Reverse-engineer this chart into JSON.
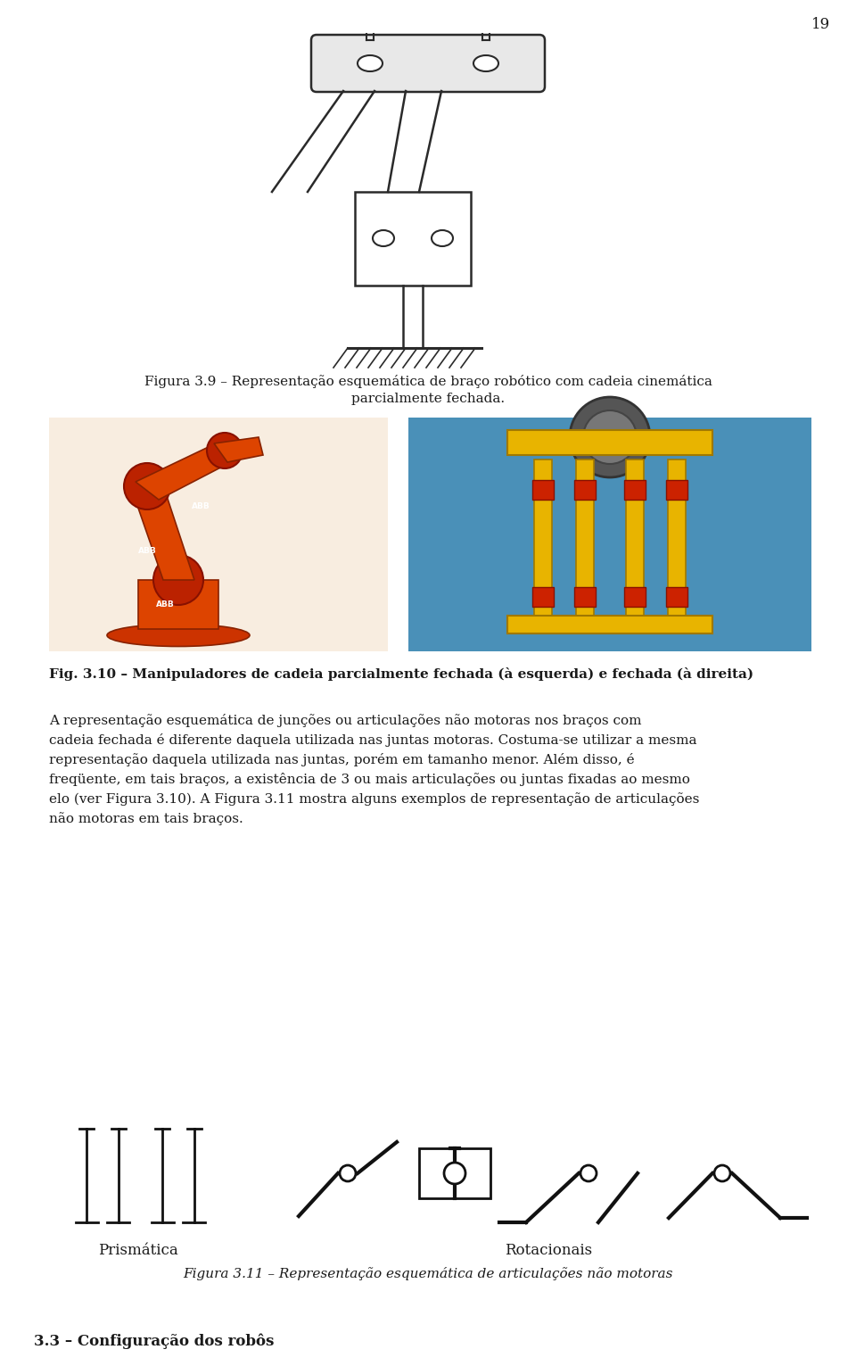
{
  "page_number": "19",
  "background_color": "#ffffff",
  "text_color": "#1a1a1a",
  "fig_caption_39": "Figura 3.9 – Representação esquemática de braço robótico com cadeia cinemática\nparcialmente fechada.",
  "fig_caption_310": "Fig. 3.10 – Manipuladores de cadeia parcialmente fechada (à esquerda) e fechada (à direita)",
  "body_text_lines": [
    "A representação esquemática de junções ou articulações não motoras nos braços com",
    "cadeia fechada é diferente daquela utilizada nas juntas motoras. Costuma-se utilizar a mesma",
    "representação daquela utilizada nas juntas, porém em tamanho menor. Além disso, é",
    "freqüente, em tais braços, a existência de 3 ou mais articulações ou juntas fixadas ao mesmo",
    "elo (ver Figura 3.10). A Figura 3.11 mostra alguns exemplos de representação de articulações",
    "não motoras em tais braços."
  ],
  "label_prismatica": "Prismática",
  "label_rotacionais": "Rotacionais",
  "fig_caption_311": "Figura 3.11 – Representação esquemática de articulações não motoras",
  "section_header": "3.3 – Configuração dos robôs",
  "font_size_body": 11,
  "font_size_caption": 11,
  "font_size_section": 12,
  "font_size_page_num": 12
}
